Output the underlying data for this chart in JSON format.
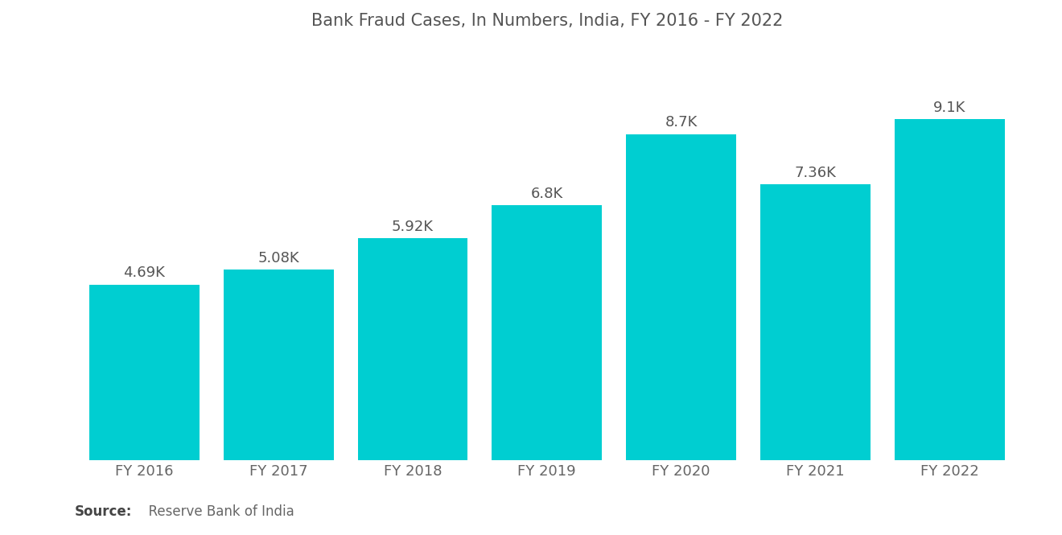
{
  "title": "Bank Fraud Cases, In Numbers, India, FY 2016 - FY 2022",
  "categories": [
    "FY 2016",
    "FY 2017",
    "FY 2018",
    "FY 2019",
    "FY 2020",
    "FY 2021",
    "FY 2022"
  ],
  "values": [
    4690,
    5080,
    5920,
    6800,
    8700,
    7360,
    9100
  ],
  "labels": [
    "4.69K",
    "5.08K",
    "5.92K",
    "6.8K",
    "8.7K",
    "7.36K",
    "9.1K"
  ],
  "bar_color": "#00CED1",
  "background_color": "#ffffff",
  "title_color": "#555555",
  "label_color": "#555555",
  "tick_color": "#666666",
  "source_bold": "Source:",
  "source_text": "  Reserve Bank of India",
  "ylim": [
    0,
    11000
  ],
  "bar_width": 0.82,
  "title_fontsize": 15,
  "label_fontsize": 13,
  "tick_fontsize": 13,
  "source_fontsize": 12
}
